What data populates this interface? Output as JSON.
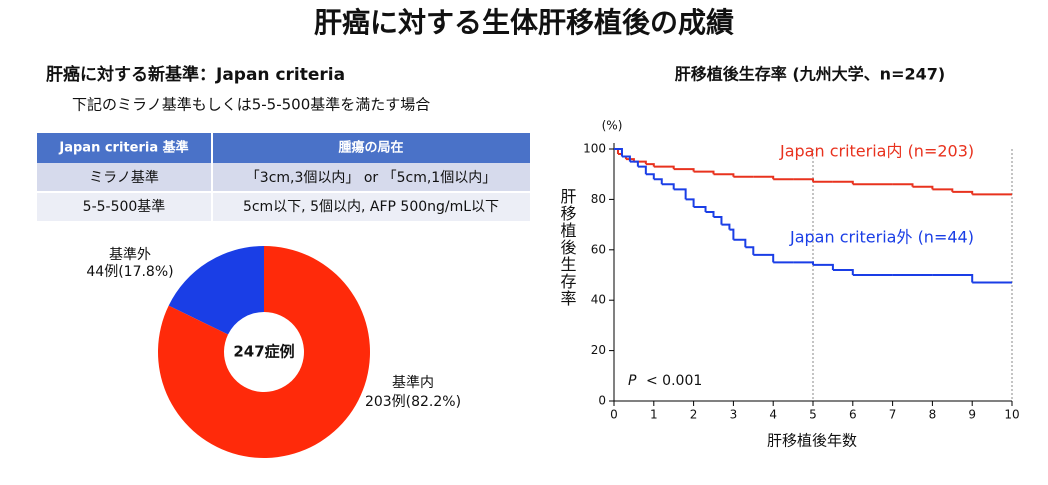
{
  "title": "肝癌に対する生体肝移植後の成績",
  "criteria": {
    "heading": "肝癌に対する新基準：Japan criteria",
    "subheading": "下記のミラノ基準もしくは5-5-500基準を満たす場合"
  },
  "table": {
    "header": [
      "Japan criteria 基準",
      "腫瘍の局在"
    ],
    "rows": [
      [
        "ミラノ基準",
        "「3cm,3個以内」 or 「5cm,1個以内」"
      ],
      [
        "5-5-500基準",
        "5cm以下, 5個以内, AFP 500ng/mL以下"
      ]
    ]
  },
  "chart_data": [
    {
      "type": "pie",
      "donut": true,
      "center_label": "247症例",
      "categories": [
        "基準外",
        "基準内"
      ],
      "values": [
        17.8,
        82.2
      ],
      "value_labels": [
        "44例(17.8%)",
        "203例(82.2%)"
      ],
      "colors": [
        "#1a3ee6",
        "#ff2a0a"
      ]
    },
    {
      "type": "line",
      "step": true,
      "title": "肝移植後生存率 (九州大学、n=247)",
      "x_label": "肝移植後年数",
      "y_label": "肝移植後生存率",
      "y_unit": "(%)",
      "annotation": {
        "italic": "P",
        "text": "< 0.001"
      },
      "xlim": [
        0,
        10
      ],
      "ylim": [
        0,
        100
      ],
      "xticks": [
        0,
        1,
        2,
        3,
        4,
        5,
        6,
        7,
        8,
        9,
        10
      ],
      "yticks": [
        0,
        20,
        40,
        60,
        80,
        100
      ],
      "vlines": [
        5,
        10
      ],
      "series": [
        {
          "name": "Japan criteria内 (n=203)",
          "color": "#e8321e",
          "x": [
            0,
            0.1,
            0.2,
            0.3,
            0.5,
            0.8,
            1,
            1.5,
            2,
            2.5,
            3,
            3.5,
            4,
            4.5,
            5,
            5.5,
            6,
            7,
            7.5,
            8,
            8.5,
            9,
            10
          ],
          "values": [
            100,
            98,
            97,
            96,
            95,
            94,
            93,
            92,
            91,
            90,
            89,
            89,
            88,
            88,
            87,
            87,
            86,
            86,
            85,
            84,
            83,
            82,
            82
          ]
        },
        {
          "name": "Japan criteria外 (n=44)",
          "color": "#1a3ee6",
          "x": [
            0,
            0.2,
            0.4,
            0.6,
            0.8,
            1,
            1.2,
            1.5,
            1.8,
            2,
            2.3,
            2.5,
            2.7,
            2.9,
            3,
            3.3,
            3.5,
            4,
            4.5,
            5,
            5.5,
            6,
            7,
            8,
            9,
            10
          ],
          "values": [
            100,
            97,
            95,
            93,
            90,
            88,
            86,
            84,
            80,
            77,
            75,
            73,
            70,
            68,
            64,
            61,
            58,
            55,
            55,
            54,
            52,
            50,
            50,
            50,
            47,
            47
          ]
        }
      ]
    }
  ]
}
